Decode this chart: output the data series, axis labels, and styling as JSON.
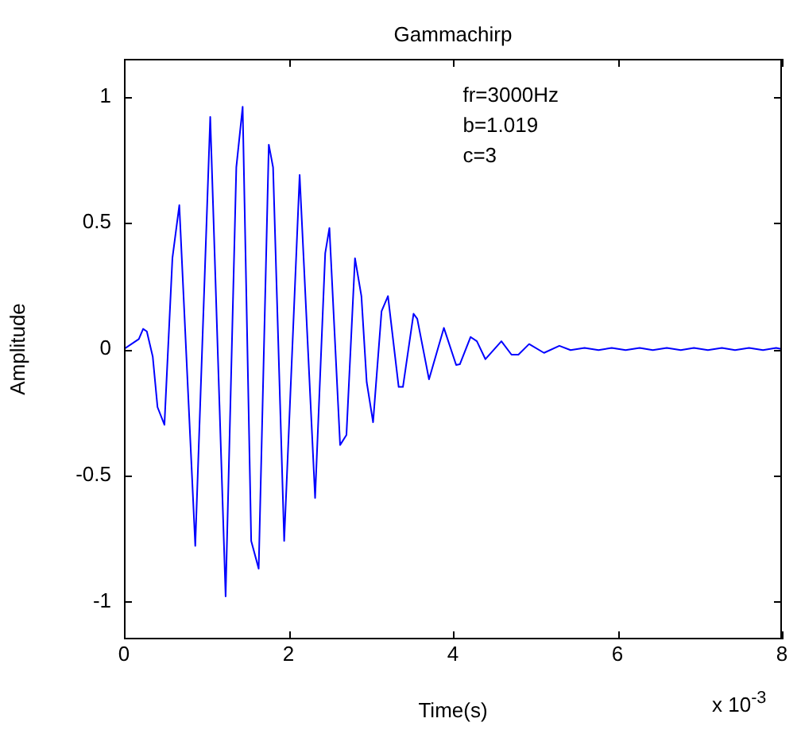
{
  "chart_data": {
    "type": "line",
    "title": "Gammachirp",
    "xlabel": "Time(s)",
    "ylabel": "Amplitude",
    "annotations": [
      "fr=3000Hz",
      "b=1.019",
      "c=3",
      "x 10$^{-3}$"
    ],
    "xlim": [
      0,
      8
    ],
    "xticks": [
      0,
      2,
      4,
      6,
      8
    ],
    "ylim": [
      -1.15,
      1.15
    ],
    "yticks": [
      -1,
      -0.5,
      0,
      0.5,
      1
    ],
    "grid": false,
    "legend": false,
    "marker": "none",
    "line_style": "solid",
    "series": [
      {
        "color": "#0000ff",
        "x": [
          0,
          0.181,
          0.233,
          0.278,
          0.35,
          0.408,
          0.492,
          0.589,
          0.673,
          0.867,
          1.049,
          1.236,
          1.366,
          1.443,
          1.547,
          1.638,
          1.761,
          1.813,
          1.948,
          2.136,
          2.324,
          2.447,
          2.498,
          2.628,
          2.705,
          2.809,
          2.887,
          2.951,
          3.029,
          3.132,
          3.21,
          3.34,
          3.392,
          3.521,
          3.566,
          3.709,
          3.89,
          4.039,
          4.084,
          4.214,
          4.291,
          4.395,
          4.589,
          4.712,
          4.796,
          4.926,
          5.107,
          5.294,
          5.43,
          5.6,
          5.77,
          5.93,
          6.1,
          6.27,
          6.43,
          6.6,
          6.77,
          6.93,
          7.1,
          7.27,
          7.43,
          7.6,
          7.77,
          7.93,
          8
        ],
        "values": [
          0,
          0.04,
          0.08,
          0.07,
          -0.03,
          -0.23,
          -0.3,
          0.36,
          0.57,
          -0.78,
          0.92,
          -0.98,
          0.72,
          0.96,
          -0.76,
          -0.87,
          0.81,
          0.72,
          -0.76,
          0.69,
          -0.59,
          0.38,
          0.48,
          -0.38,
          -0.34,
          0.36,
          0.21,
          -0.13,
          -0.29,
          0.15,
          0.21,
          -0.15,
          -0.15,
          0.14,
          0.12,
          -0.12,
          0.084,
          -0.063,
          -0.06,
          0.048,
          0.031,
          -0.04,
          0.031,
          -0.022,
          -0.022,
          0.02,
          -0.015,
          0.013,
          -0.004,
          0.005,
          -0.004,
          0.005,
          -0.004,
          0.005,
          -0.004,
          0.005,
          -0.004,
          0.005,
          -0.004,
          0.005,
          -0.004,
          0.005,
          -0.004,
          0.005,
          0
        ]
      }
    ]
  }
}
